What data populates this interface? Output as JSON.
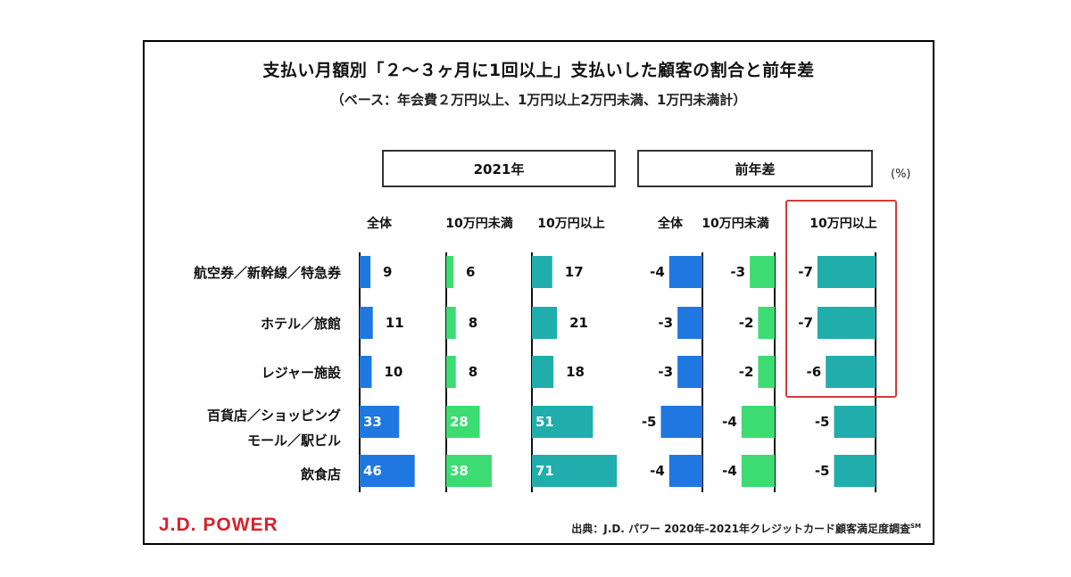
{
  "header": {
    "title": "支払い月額別「２～３ヶ月に1回以上」支払いした顧客の割合と前年差",
    "subtitle": "（ベース：年会費２万円以上、1万円以上2万円未満、1万円未満計）",
    "unit": "(%)"
  },
  "footer": {
    "logo": "J.D. POWER",
    "source": "出典：J.D. パワー 2020年-2021年クレジットカード顧客満足度調査",
    "source_mark": "SM"
  },
  "chart_data": {
    "type": "bar",
    "orientation": "horizontal",
    "groups": [
      {
        "title": "2021年",
        "key": "y2021"
      },
      {
        "title": "前年差",
        "key": "diff"
      }
    ],
    "categories": [
      "航空券／新幹線／特急券",
      "ホテル／旅館",
      "レジャー施設",
      "百貨店／ショッピングモール／駅ビル",
      "飲食店"
    ],
    "category_lines": [
      [
        "航空券／新幹線／特急券"
      ],
      [
        "ホテル／旅館"
      ],
      [
        "レジャー施設"
      ],
      [
        "百貨店／ショッピング",
        "モール／駅ビル"
      ],
      [
        "飲食店"
      ]
    ],
    "series": [
      {
        "name": "全体",
        "group": "2021年",
        "color": "#1f78e0",
        "values": [
          9,
          11,
          10,
          33,
          46
        ]
      },
      {
        "name": "10万円未満",
        "group": "2021年",
        "color": "#3ddc73",
        "values": [
          6,
          8,
          8,
          28,
          38
        ]
      },
      {
        "name": "10万円以上",
        "group": "2021年",
        "color": "#21adac",
        "values": [
          17,
          21,
          18,
          51,
          71
        ]
      },
      {
        "name": "全体",
        "group": "前年差",
        "color": "#1f78e0",
        "values": [
          -4,
          -3,
          -3,
          -5,
          -4
        ]
      },
      {
        "name": "10万円未満",
        "group": "前年差",
        "color": "#3ddc73",
        "values": [
          -3,
          -2,
          -2,
          -4,
          -4
        ]
      },
      {
        "name": "10万円以上",
        "group": "前年差",
        "color": "#21adac",
        "values": [
          -7,
          -7,
          -6,
          -5,
          -5
        ]
      }
    ],
    "highlight": "前年差 10万円以上",
    "highlight_color": "#d23a3a"
  }
}
